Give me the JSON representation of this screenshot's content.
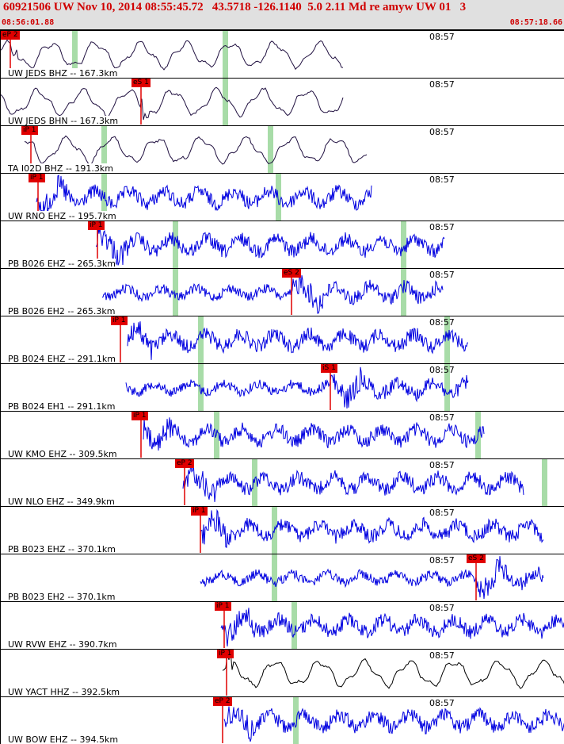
{
  "header": {
    "event_info": "60921506 UW Nov 10, 2014 08:55:45.72   43.5718 -126.1140  5.0 2.11 Md re amyw UW 01   3",
    "start_time": "08:56:01.88",
    "end_time": "08:57:18.66"
  },
  "colors": {
    "header_text": "#d00000",
    "pick_flag": "#e00000",
    "trace_blue": "#0000e0",
    "trace_dark": "#201040",
    "trace_black": "#000000",
    "marker_green": "#a8dca8"
  },
  "traces": [
    {
      "label": "UW JEDS BHZ -- 167.3km",
      "clock": "08:57",
      "pick": "eP 2",
      "color": "dark"
    },
    {
      "label": "UW JEDS BHN -- 167.3km",
      "clock": "08:57",
      "pick": "eS 1",
      "color": "dark"
    },
    {
      "label": "TA I02D BHZ -- 191.3km",
      "clock": "08:57",
      "pick": "iP 1",
      "color": "dark"
    },
    {
      "label": "UW RNO EHZ -- 195.7km",
      "clock": "08:57",
      "pick": "iP 1",
      "color": "blue"
    },
    {
      "label": "PB B026 EHZ -- 265.3km",
      "clock": "08:57",
      "pick": "iP 1",
      "color": "blue"
    },
    {
      "label": "PB B026 EH2 -- 265.3km",
      "clock": "08:57",
      "pick": "eS 2",
      "color": "blue"
    },
    {
      "label": "PB B024 EHZ -- 291.1km",
      "clock": "08:57",
      "pick": "iP 1",
      "color": "blue"
    },
    {
      "label": "PB B024 EH1 -- 291.1km",
      "clock": "08:57",
      "pick": "iS 1",
      "color": "blue"
    },
    {
      "label": "UW KMO EHZ -- 309.5km",
      "clock": "08:57",
      "pick": "iP 1",
      "color": "blue"
    },
    {
      "label": "UW NLO EHZ -- 349.9km",
      "clock": "08:57",
      "pick": "eP 2",
      "color": "blue"
    },
    {
      "label": "PB B023 EHZ -- 370.1km",
      "clock": "08:57",
      "pick": "iP 1",
      "color": "blue"
    },
    {
      "label": "PB B023 EH2 -- 370.1km",
      "clock": "08:57",
      "pick": "eS 2",
      "color": "blue"
    },
    {
      "label": "UW RVW EHZ -- 390.7km",
      "clock": "08:57",
      "pick": "iP 1",
      "color": "blue"
    },
    {
      "label": "UW YACT HHZ -- 392.5km",
      "clock": "08:57",
      "pick": "iP 1",
      "color": "black"
    },
    {
      "label": "UW BOW EHZ -- 394.5km",
      "clock": "08:57",
      "pick": "eP 2",
      "color": "blue"
    }
  ]
}
